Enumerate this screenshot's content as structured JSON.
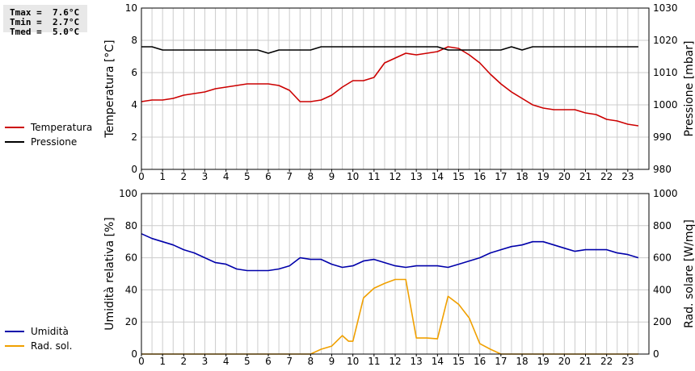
{
  "stats": {
    "tmax": "Tmax =  7.6°C",
    "tmin": "Tmin =  2.7°C",
    "tmed": "Tmed =  5.0°C"
  },
  "colors": {
    "temperature": "#cc0000",
    "pressure": "#000000",
    "humidity": "#0000aa",
    "solar": "#f0a000",
    "grid": "#cccccc"
  },
  "chart_data": [
    {
      "type": "line",
      "x_ticks": [
        "0",
        "1",
        "2",
        "3",
        "4",
        "5",
        "6",
        "7",
        "8",
        "9",
        "10",
        "11",
        "12",
        "13",
        "14",
        "15",
        "16",
        "17",
        "18",
        "19",
        "20",
        "21",
        "22",
        "23"
      ],
      "xlim": [
        0,
        24
      ],
      "ylabel_left": "Temperatura [°C]",
      "ylabel_right": "Pressione [mbar]",
      "ylim_left": [
        0,
        10
      ],
      "ylim_right": [
        980,
        1030
      ],
      "yticks_left": [
        "0",
        "2",
        "4",
        "6",
        "8",
        "10"
      ],
      "yticks_right": [
        "980",
        "990",
        "1000",
        "1010",
        "1020",
        "1030"
      ],
      "grid": true,
      "series": [
        {
          "name": "Temperatura",
          "axis": "left",
          "x": [
            0,
            0.5,
            1,
            1.5,
            2,
            2.5,
            3,
            3.5,
            4,
            4.5,
            5,
            5.5,
            6,
            6.5,
            7,
            7.5,
            8,
            8.5,
            9,
            9.5,
            10,
            10.5,
            11,
            11.5,
            12,
            12.5,
            13,
            13.5,
            14,
            14.5,
            15,
            15.5,
            16,
            16.5,
            17,
            17.5,
            18,
            18.5,
            19,
            19.5,
            20,
            20.5,
            21,
            21.5,
            22,
            22.5,
            23,
            23.5
          ],
          "values": [
            4.2,
            4.3,
            4.3,
            4.4,
            4.6,
            4.7,
            4.8,
            5.0,
            5.1,
            5.2,
            5.3,
            5.3,
            5.3,
            5.2,
            4.9,
            4.2,
            4.2,
            4.3,
            4.6,
            5.1,
            5.5,
            5.5,
            5.7,
            6.6,
            6.9,
            7.2,
            7.1,
            7.2,
            7.3,
            7.6,
            7.5,
            7.1,
            6.6,
            5.9,
            5.3,
            4.8,
            4.4,
            4.0,
            3.8,
            3.7,
            3.7,
            3.7,
            3.5,
            3.4,
            3.1,
            3.0,
            2.8,
            2.7
          ]
        },
        {
          "name": "Pressione",
          "axis": "right",
          "x": [
            0,
            0.5,
            1,
            1.5,
            2,
            2.5,
            3,
            3.5,
            4,
            4.5,
            5,
            5.5,
            6,
            6.5,
            7,
            7.5,
            8,
            8.5,
            9,
            9.5,
            10,
            10.5,
            11,
            11.5,
            12,
            12.5,
            13,
            13.5,
            14,
            14.5,
            15,
            15.5,
            16,
            16.5,
            17,
            17.5,
            18,
            18.5,
            19,
            19.5,
            20,
            20.5,
            21,
            21.5,
            22,
            22.5,
            23,
            23.5
          ],
          "values": [
            1018,
            1018,
            1017,
            1017,
            1017,
            1017,
            1017,
            1017,
            1017,
            1017,
            1017,
            1017,
            1016,
            1017,
            1017,
            1017,
            1017,
            1018,
            1018,
            1018,
            1018,
            1018,
            1018,
            1018,
            1018,
            1018,
            1018,
            1018,
            1018,
            1017,
            1017,
            1017,
            1017,
            1017,
            1017,
            1018,
            1017,
            1018,
            1018,
            1018,
            1018,
            1018,
            1018,
            1018,
            1018,
            1018,
            1018,
            1018
          ]
        }
      ]
    },
    {
      "type": "line",
      "x_ticks": [
        "0",
        "1",
        "2",
        "3",
        "4",
        "5",
        "6",
        "7",
        "8",
        "9",
        "10",
        "11",
        "12",
        "13",
        "14",
        "15",
        "16",
        "17",
        "18",
        "19",
        "20",
        "21",
        "22",
        "23"
      ],
      "xlim": [
        0,
        24
      ],
      "ylabel_left": "Umidità relativa [%]",
      "ylabel_right": "Rad. solare [W/mq]",
      "ylim_left": [
        0,
        100
      ],
      "ylim_right": [
        0,
        1000
      ],
      "yticks_left": [
        "0",
        "20",
        "40",
        "60",
        "80",
        "100"
      ],
      "yticks_right": [
        "0",
        "200",
        "400",
        "600",
        "800",
        "1000"
      ],
      "grid": true,
      "series": [
        {
          "name": "Umidità",
          "axis": "left",
          "x": [
            0,
            0.5,
            1,
            1.5,
            2,
            2.5,
            3,
            3.5,
            4,
            4.5,
            5,
            5.5,
            6,
            6.5,
            7,
            7.5,
            8,
            8.5,
            9,
            9.5,
            10,
            10.5,
            11,
            11.5,
            12,
            12.5,
            13,
            13.5,
            14,
            14.5,
            15,
            15.5,
            16,
            16.5,
            17,
            17.5,
            18,
            18.5,
            19,
            19.5,
            20,
            20.5,
            21,
            21.5,
            22,
            22.5,
            23,
            23.5
          ],
          "values": [
            75,
            72,
            70,
            68,
            65,
            63,
            60,
            57,
            56,
            53,
            52,
            52,
            52,
            53,
            55,
            60,
            59,
            59,
            56,
            54,
            55,
            58,
            59,
            57,
            55,
            54,
            55,
            55,
            55,
            54,
            56,
            58,
            60,
            63,
            65,
            67,
            68,
            70,
            70,
            68,
            66,
            64,
            65,
            65,
            65,
            63,
            62,
            60
          ]
        },
        {
          "name": "Rad. sol.",
          "axis": "right",
          "x": [
            0,
            1,
            2,
            3,
            4,
            5,
            6,
            7,
            7.5,
            8,
            8.5,
            9,
            9.5,
            9.8,
            10,
            10.5,
            11,
            11.5,
            12,
            12.5,
            13,
            13.5,
            14,
            14.5,
            15,
            15.5,
            16,
            16.5,
            17,
            18,
            19,
            20,
            21,
            22,
            23,
            23.5
          ],
          "values": [
            0,
            0,
            0,
            0,
            0,
            0,
            0,
            0,
            0,
            0,
            30,
            50,
            115,
            80,
            80,
            350,
            410,
            440,
            465,
            465,
            100,
            100,
            95,
            360,
            310,
            225,
            65,
            30,
            0,
            0,
            0,
            0,
            0,
            0,
            0,
            0
          ]
        }
      ]
    }
  ]
}
